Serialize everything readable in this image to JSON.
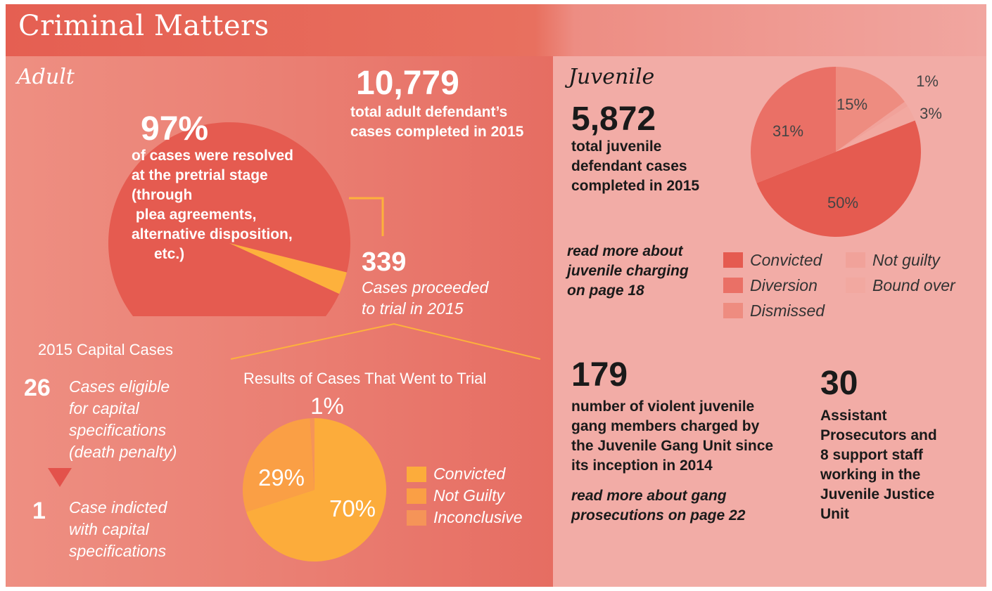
{
  "header": {
    "title": "Criminal Matters"
  },
  "adult": {
    "section_label": "Adult",
    "pretrial_percent": "97%",
    "pretrial_text": [
      "of cases were resolved",
      "at the pretrial stage",
      "(through",
      " plea agreements,",
      "alternative disposition,",
      "etc.)"
    ],
    "total_cases": "10,779",
    "total_text": [
      "total adult defendant’s",
      "cases completed in 2015"
    ],
    "trial_count": "339",
    "trial_text": [
      "Cases proceeded",
      "to trial in 2015"
    ],
    "capital": {
      "heading": "2015 Capital Cases",
      "eligible_number": "26",
      "eligible_text": [
        "Cases eligible",
        "for capital",
        "specifications",
        "(death penalty)"
      ],
      "indicted_number": "1",
      "indicted_text": [
        "Case indicted",
        "with capital",
        "specifications"
      ]
    }
  },
  "juvenile": {
    "section_label": "Juvenile",
    "total_cases": "5,872",
    "total_text": [
      "total juvenile",
      "defendant cases",
      "completed in 2015"
    ],
    "read_more_charging": [
      "read more about",
      "juvenile charging",
      "on page 18"
    ],
    "gang_count": "179",
    "gang_text": [
      "number of violent juvenile",
      "gang members charged by",
      "the Juvenile Gang Unit since",
      "its inception in 2014"
    ],
    "read_more_gang": [
      "read more about gang",
      "prosecutions on page 22"
    ],
    "staff_count": "30",
    "staff_text": [
      "Assistant",
      "Prosecutors and",
      "8 support staff",
      "working in the",
      "Juvenile Justice",
      "Unit"
    ]
  },
  "chart_data": [
    {
      "type": "pie",
      "title": "",
      "categories": [
        "Resolved at pretrial stage",
        "Proceeded to trial"
      ],
      "values": [
        97,
        3
      ],
      "labels": [
        "97%",
        ""
      ],
      "colors": [
        "#e55b50",
        "#fdb13c"
      ]
    },
    {
      "type": "pie",
      "title": "Results of Cases That Went to Trial",
      "categories": [
        "Convicted",
        "Not Guilty",
        "Inconclusive"
      ],
      "values": [
        70,
        29,
        1
      ],
      "labels": [
        "70%",
        "29%",
        "1%"
      ],
      "colors": [
        "#fcac3b",
        "#fa9f45",
        "#f59458"
      ]
    },
    {
      "type": "pie",
      "title": "",
      "categories": [
        "Convicted",
        "Diversion",
        "Dismissed",
        "Not guilty",
        "Bound over"
      ],
      "values": [
        50,
        31,
        15,
        1,
        3
      ],
      "labels": [
        "50%",
        "31%",
        "15%",
        "1%",
        "3%"
      ],
      "colors": [
        "#e55b50",
        "#ea7066",
        "#ee8c80",
        "#f1a29a",
        "#f2a8a0"
      ]
    }
  ]
}
